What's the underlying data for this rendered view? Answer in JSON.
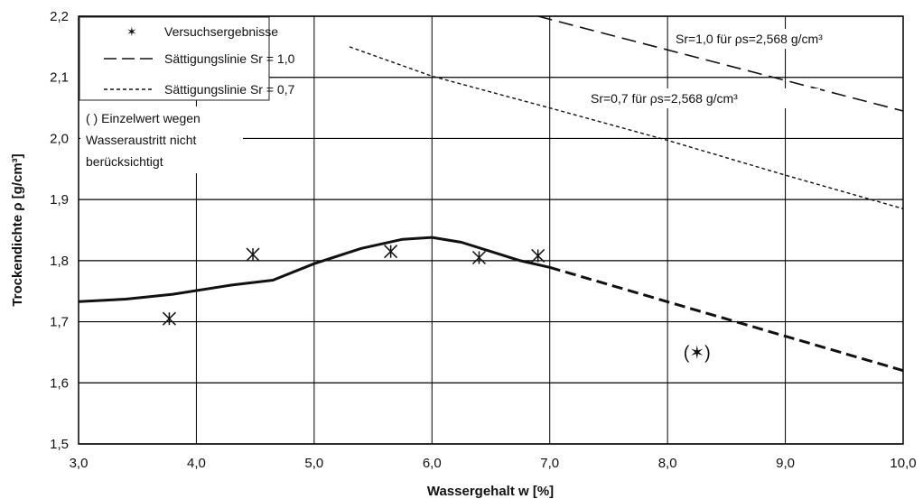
{
  "chart_data": {
    "type": "line",
    "title": "",
    "xlabel": "Wassergehalt w [%]",
    "ylabel": "Trockendichte ρ [g/cm³]",
    "xlim": [
      3.0,
      10.0
    ],
    "ylim": [
      1.5,
      2.2
    ],
    "x_ticks": [
      "3,0",
      "4,0",
      "5,0",
      "6,0",
      "7,0",
      "8,0",
      "9,0",
      "10,0"
    ],
    "y_ticks": [
      "1,5",
      "1,6",
      "1,7",
      "1,8",
      "1,9",
      "2,0",
      "2,1",
      "2,2"
    ],
    "grid": "horizontal and vertical",
    "legend": {
      "position": "top-left",
      "entries": [
        {
          "marker": "✶",
          "label": "Versuchsergebnisse"
        },
        {
          "style": "long-dash",
          "label": "Sättigungslinie Sr = 1,0"
        },
        {
          "style": "short-dash",
          "label": "Sättigungslinie Sr = 0,7"
        }
      ],
      "note_line1": "(   ) Einzelwert wegen",
      "note_line2": "Wasseraustritt nicht",
      "note_line3": "berücksichtigt"
    },
    "series": [
      {
        "style": "points",
        "x": [
          3.77,
          4.48,
          5.65,
          6.4,
          6.9
        ],
        "y": [
          1.705,
          1.81,
          1.815,
          1.805,
          1.808
        ]
      },
      {
        "style": "solid",
        "x": [
          3.0,
          3.4,
          3.8,
          4.3,
          4.65,
          5.0,
          5.4,
          5.75,
          6.0,
          6.25,
          6.5,
          6.75,
          7.0
        ],
        "y": [
          1.733,
          1.737,
          1.745,
          1.76,
          1.768,
          1.795,
          1.82,
          1.835,
          1.838,
          1.83,
          1.815,
          1.8,
          1.789
        ]
      },
      {
        "style": "dashed",
        "x": [
          7.0,
          10.0
        ],
        "y": [
          1.789,
          1.62
        ]
      },
      {
        "style": "long-dash",
        "x": [
          6.9,
          10.0
        ],
        "y": [
          2.2,
          2.045
        ]
      },
      {
        "style": "short-dash",
        "x": [
          5.3,
          6.0,
          7.0,
          8.0,
          9.0,
          10.0
        ],
        "y": [
          2.15,
          2.102,
          2.05,
          1.997,
          1.94,
          1.885
        ]
      }
    ],
    "excluded_point": {
      "x": 8.25,
      "y": 1.65,
      "label": "(✶)"
    },
    "annotations": {
      "sr1": "Sr=1,0 für ρs=2,568 g/cm³",
      "sr07": "Sr=0,7 für ρs=2,568 g/cm³"
    }
  }
}
